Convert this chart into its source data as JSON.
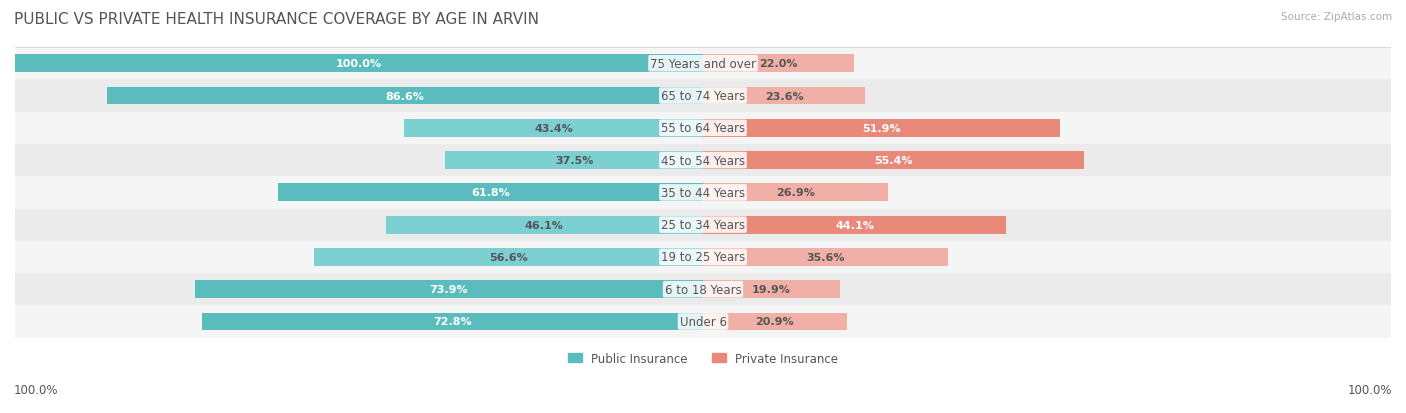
{
  "title": "PUBLIC VS PRIVATE HEALTH INSURANCE COVERAGE BY AGE IN ARVIN",
  "source": "Source: ZipAtlas.com",
  "categories": [
    "Under 6",
    "6 to 18 Years",
    "19 to 25 Years",
    "25 to 34 Years",
    "35 to 44 Years",
    "45 to 54 Years",
    "55 to 64 Years",
    "65 to 74 Years",
    "75 Years and over"
  ],
  "public_values": [
    72.8,
    73.9,
    56.6,
    46.1,
    61.8,
    37.5,
    43.4,
    86.6,
    100.0
  ],
  "private_values": [
    20.9,
    19.9,
    35.6,
    44.1,
    26.9,
    55.4,
    51.9,
    23.6,
    22.0
  ],
  "public_color": "#5bbcbe",
  "private_color": "#e8897a",
  "public_color_light": "#7dd0d2",
  "private_color_light": "#f0b0a5",
  "bar_bg_color": "#f0f0f0",
  "row_bg_colors": [
    "#f5f5f5",
    "#ebebeb"
  ],
  "title_color": "#555555",
  "label_color": "#555555",
  "text_color_white": "#ffffff",
  "text_color_dark": "#555555",
  "legend_public": "Public Insurance",
  "legend_private": "Private Insurance",
  "bar_height": 0.55,
  "title_fontsize": 11,
  "label_fontsize": 8.5,
  "value_fontsize": 8,
  "source_fontsize": 7.5,
  "footer_label": "100.0%",
  "max_value": 100
}
